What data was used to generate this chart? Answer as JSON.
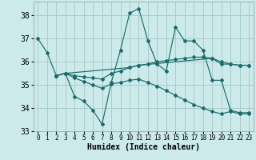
{
  "xlabel": "Humidex (Indice chaleur)",
  "xlim": [
    -0.5,
    23.5
  ],
  "ylim": [
    33,
    38.6
  ],
  "yticks": [
    33,
    34,
    35,
    36,
    37,
    38
  ],
  "xticks": [
    0,
    1,
    2,
    3,
    4,
    5,
    6,
    7,
    8,
    9,
    10,
    11,
    12,
    13,
    14,
    15,
    16,
    17,
    18,
    19,
    20,
    21,
    22,
    23
  ],
  "bg_color": "#cceaea",
  "grid_color": "#aacccc",
  "line_color": "#1a6b6b",
  "lines": [
    {
      "x": [
        0,
        1,
        2,
        3,
        4,
        5,
        6,
        7,
        8,
        9,
        10,
        11,
        12,
        13,
        14,
        15,
        16,
        17,
        18,
        19,
        20,
        21,
        22,
        23
      ],
      "y": [
        37.0,
        36.4,
        35.4,
        35.5,
        34.5,
        34.3,
        33.9,
        33.3,
        35.1,
        36.5,
        38.1,
        38.3,
        36.9,
        35.9,
        35.6,
        37.5,
        36.9,
        36.9,
        36.5,
        35.2,
        35.2,
        33.9,
        33.8,
        33.8
      ]
    },
    {
      "x": [
        2,
        3,
        4,
        5,
        6,
        7,
        8,
        9,
        10,
        11,
        12,
        13,
        14,
        15,
        16,
        17,
        18,
        19,
        20,
        21,
        22,
        23
      ],
      "y": [
        35.4,
        35.5,
        35.4,
        35.35,
        35.3,
        35.25,
        35.5,
        35.6,
        35.75,
        35.85,
        35.9,
        36.0,
        36.05,
        36.1,
        36.15,
        36.2,
        36.2,
        36.15,
        36.0,
        35.9,
        35.85,
        35.85
      ]
    },
    {
      "x": [
        2,
        3,
        4,
        5,
        6,
        7,
        8,
        9,
        10,
        11,
        12,
        13,
        14,
        15,
        16,
        17,
        18,
        19,
        20,
        21,
        22,
        23
      ],
      "y": [
        35.4,
        35.5,
        35.3,
        35.15,
        35.0,
        34.85,
        35.05,
        35.1,
        35.2,
        35.25,
        35.1,
        34.95,
        34.75,
        34.55,
        34.35,
        34.15,
        34.0,
        33.85,
        33.75,
        33.85,
        33.75,
        33.75
      ]
    },
    {
      "x": [
        2,
        3,
        10,
        11,
        19,
        20,
        21,
        22,
        23
      ],
      "y": [
        35.4,
        35.5,
        35.75,
        35.85,
        36.15,
        35.9,
        35.9,
        35.85,
        35.85
      ]
    }
  ]
}
